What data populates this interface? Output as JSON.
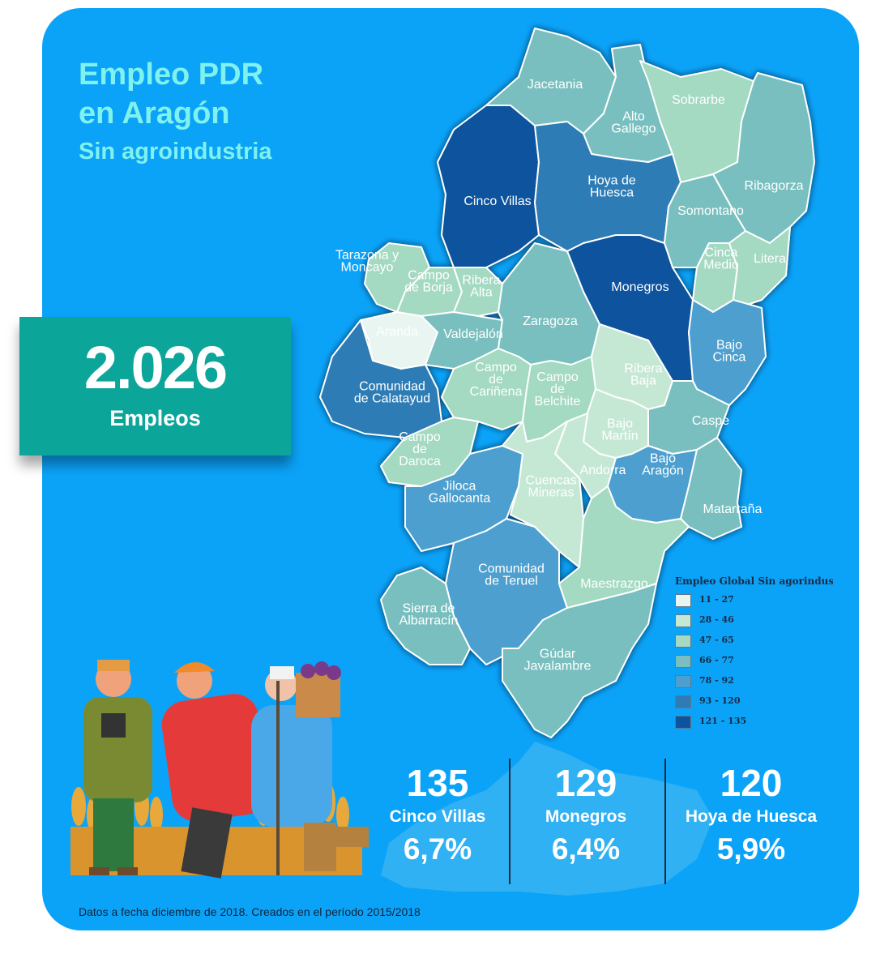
{
  "title": {
    "line1": "Empleo PDR",
    "line2": "en Aragón",
    "line3": "Sin agroindustria"
  },
  "kpi": {
    "value": "2.026",
    "label": "Empleos"
  },
  "legend": {
    "title": "Empleo Global Sin agorindustria",
    "items": [
      {
        "label": "11 - 27",
        "color": "#e8f5f1"
      },
      {
        "label": "28 - 46",
        "color": "#c5e8d4"
      },
      {
        "label": "47 - 65",
        "color": "#a4d9c2"
      },
      {
        "label": "66 - 77",
        "color": "#79bfbf"
      },
      {
        "label": "78 - 92",
        "color": "#4d9fcf"
      },
      {
        "label": "93 - 120",
        "color": "#2e7bb5"
      },
      {
        "label": "121 - 135",
        "color": "#0d539e"
      }
    ]
  },
  "comarcas": [
    {
      "name": "Jacetania",
      "lines": [
        "Jacetania"
      ],
      "color": "#79bfbf"
    },
    {
      "name": "Alto Gallego",
      "lines": [
        "Alto",
        "Gallego"
      ],
      "color": "#79bfbf"
    },
    {
      "name": "Sobrarbe",
      "lines": [
        "Sobrarbe"
      ],
      "color": "#a4d9c2"
    },
    {
      "name": "Ribagorza",
      "lines": [
        "Ribagorza"
      ],
      "color": "#79bfbf"
    },
    {
      "name": "Cinco Villas",
      "lines": [
        "Cinco Villas"
      ],
      "color": "#0d539e"
    },
    {
      "name": "Hoya de Huesca",
      "lines": [
        "Hoya de",
        "Huesca"
      ],
      "color": "#2e7bb5"
    },
    {
      "name": "Somontano",
      "lines": [
        "Somontano"
      ],
      "color": "#79bfbf"
    },
    {
      "name": "Cinca Medio",
      "lines": [
        "Cinca",
        "Medio"
      ],
      "color": "#a4d9c2"
    },
    {
      "name": "Litera",
      "lines": [
        "Litera"
      ],
      "color": "#a4d9c2"
    },
    {
      "name": "Tarazona y Moncayo",
      "lines": [
        "Tarazona y",
        "Moncayo"
      ],
      "color": "#a4d9c2"
    },
    {
      "name": "Campo de Borja",
      "lines": [
        "Campo",
        "de Borja"
      ],
      "color": "#a4d9c2"
    },
    {
      "name": "Ribera Alta",
      "lines": [
        "Ribera",
        "Alta"
      ],
      "color": "#a4d9c2"
    },
    {
      "name": "Monegros",
      "lines": [
        "Monegros"
      ],
      "color": "#0d539e"
    },
    {
      "name": "Aranda",
      "lines": [
        "Aranda"
      ],
      "color": "#e8f5f1"
    },
    {
      "name": "Valdejalón",
      "lines": [
        "Valdejalón"
      ],
      "color": "#79bfbf"
    },
    {
      "name": "Zaragoza",
      "lines": [
        "Zaragoza"
      ],
      "color": "#79bfbf"
    },
    {
      "name": "Bajo Cinca",
      "lines": [
        "Bajo",
        "Cinca"
      ],
      "color": "#4d9fcf"
    },
    {
      "name": "Comunidad de Calatayud",
      "lines": [
        "Comunidad",
        "de Calatayud"
      ],
      "color": "#2e7bb5"
    },
    {
      "name": "Campo de Cariñena",
      "lines": [
        "Campo",
        "de",
        "Cariñena"
      ],
      "color": "#a4d9c2"
    },
    {
      "name": "Campo de Belchite",
      "lines": [
        "Campo",
        "de",
        "Belchite"
      ],
      "color": "#a4d9c2"
    },
    {
      "name": "Ribera Baja",
      "lines": [
        "Ribera",
        "Baja"
      ],
      "color": "#c5e8d4"
    },
    {
      "name": "Caspe",
      "lines": [
        "Caspe"
      ],
      "color": "#79bfbf"
    },
    {
      "name": "Bajo Martín",
      "lines": [
        "Bajo",
        "Martín"
      ],
      "color": "#c5e8d4"
    },
    {
      "name": "Campo de Daroca",
      "lines": [
        "Campo",
        "de",
        "Daroca"
      ],
      "color": "#a4d9c2"
    },
    {
      "name": "Andorra",
      "lines": [
        "Andorra"
      ],
      "color": "#c5e8d4"
    },
    {
      "name": "Bajo Aragón",
      "lines": [
        "Bajo",
        "Aragón"
      ],
      "color": "#4d9fcf"
    },
    {
      "name": "Jiloca Gallocanta",
      "lines": [
        "Jiloca",
        "Gallocanta"
      ],
      "color": "#4d9fcf"
    },
    {
      "name": "Cuencas Mineras",
      "lines": [
        "Cuencas",
        "Mineras"
      ],
      "color": "#c5e8d4"
    },
    {
      "name": "Matarraña",
      "lines": [
        "Matarraña"
      ],
      "color": "#79bfbf"
    },
    {
      "name": "Comunidad de Teruel",
      "lines": [
        "Comunidad",
        "de Teruel"
      ],
      "color": "#4d9fcf"
    },
    {
      "name": "Maestrazgo",
      "lines": [
        "Maestrazgo"
      ],
      "color": "#a4d9c2"
    },
    {
      "name": "Sierra de Albarracín",
      "lines": [
        "Sierra de",
        "Albarracín"
      ],
      "color": "#79bfbf"
    },
    {
      "name": "Gúdar Javalambre",
      "lines": [
        "Gúdar",
        "Javalambre"
      ],
      "color": "#79bfbf"
    }
  ],
  "stats": [
    {
      "value": "135",
      "name": "Cinco Villas",
      "percent": "6,7%"
    },
    {
      "value": "129",
      "name": "Monegros",
      "percent": "6,4%"
    },
    {
      "value": "120",
      "name": "Hoya de Huesca",
      "percent": "5,9%"
    }
  ],
  "footnote": "Datos a fecha diciembre de 2018. Creados en el período 2015/2018"
}
